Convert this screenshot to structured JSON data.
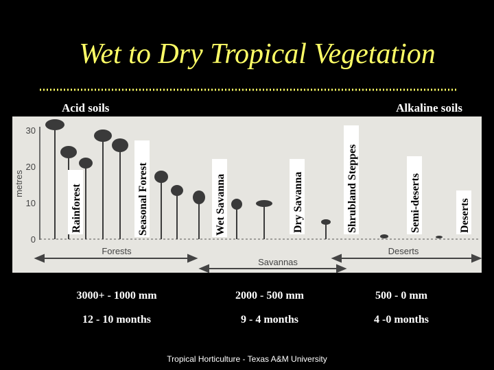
{
  "header": {
    "title": "Wet to Dry Tropical Vegetation",
    "left_label": "Acid soils",
    "right_label": "Alkaline soils"
  },
  "vegetation_types": [
    "Rainforest",
    "Seasonal Forest",
    "Wet Savanna",
    "Dry Savanna",
    "Shrubland Steppes",
    "Semi-deserts",
    "Deserts"
  ],
  "figure": {
    "y_label": "metres",
    "yticks": [
      30,
      20,
      10,
      0
    ],
    "zones": [
      "Forests",
      "Savannas",
      "Deserts"
    ]
  },
  "rows": [
    [
      "3000+ - 1000 mm",
      "2000 - 500 mm",
      "500 - 0 mm"
    ],
    [
      "12 - 10 months",
      "9 - 4 months",
      "4 -0 months"
    ]
  ],
  "footer": "Tropical Horticulture - Texas A&M University"
}
